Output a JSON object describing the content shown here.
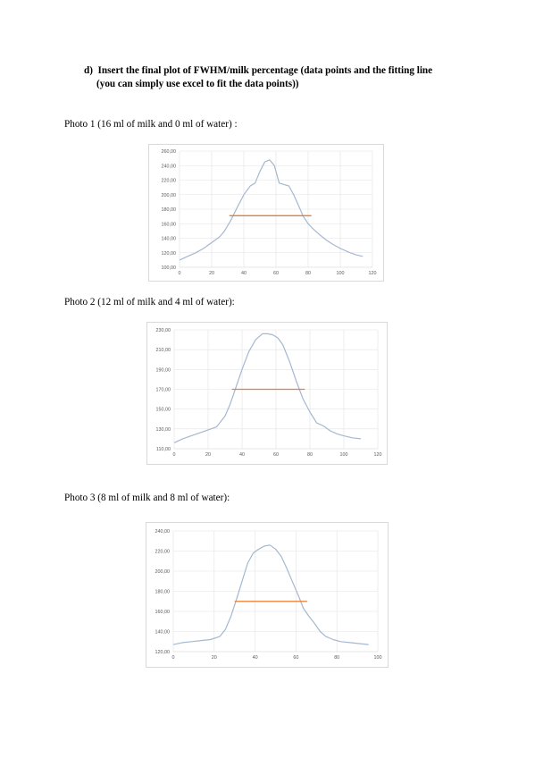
{
  "heading": {
    "marker": "d)",
    "line1": "Insert the final plot of FWHM/milk percentage (data points and the fitting line",
    "line2": "(you can simply use excel to fit the data points))"
  },
  "photos": [
    {
      "caption": "Photo 1 (16 ml of milk and 0 ml of water) :"
    },
    {
      "caption": "Photo 2 (12 ml of milk and 4 ml of water):"
    },
    {
      "caption": "Photo 3 (8 ml of milk and 8 ml of water):"
    }
  ],
  "chart_data": [
    {
      "type": "line",
      "xlim": [
        0,
        120
      ],
      "ylim": [
        100,
        260
      ],
      "x_ticks": [
        "0",
        "20",
        "40",
        "60",
        "80",
        "100",
        "120"
      ],
      "y_ticks": [
        "100,00",
        "120,00",
        "140,00",
        "160,00",
        "180,00",
        "200,00",
        "220,00",
        "240,00",
        "260,00"
      ],
      "grid": true,
      "colors": {
        "profile": "#a5b8d0",
        "fwhm": "#ed7d31"
      },
      "profile": {
        "x": [
          0,
          5,
          10,
          15,
          20,
          25,
          28,
          32,
          36,
          40,
          44,
          47,
          50,
          53,
          56,
          59,
          62,
          65,
          68,
          71,
          74,
          77,
          80,
          83,
          87,
          91,
          95,
          100,
          105,
          110,
          114
        ],
        "y": [
          110,
          115,
          120,
          126,
          134,
          142,
          150,
          165,
          183,
          200,
          212,
          216,
          232,
          245,
          248,
          240,
          216,
          214,
          212,
          200,
          185,
          170,
          160,
          153,
          145,
          138,
          132,
          126,
          121,
          117,
          115
        ]
      },
      "fwhm_line": {
        "x": [
          31,
          82
        ],
        "y": [
          171,
          171
        ]
      }
    },
    {
      "type": "line",
      "xlim": [
        0,
        120
      ],
      "ylim": [
        110,
        230
      ],
      "x_ticks": [
        "0",
        "20",
        "40",
        "60",
        "80",
        "100",
        "120"
      ],
      "y_ticks": [
        "110,00",
        "130,00",
        "150,00",
        "170,00",
        "190,00",
        "210,00",
        "230,00"
      ],
      "grid": true,
      "colors": {
        "profile": "#a5b8d0",
        "fwhm": "#ed7d31"
      },
      "profile": {
        "x": [
          0,
          5,
          10,
          15,
          20,
          25,
          30,
          33,
          36,
          40,
          44,
          48,
          52,
          55,
          58,
          61,
          64,
          68,
          72,
          76,
          80,
          84,
          88,
          92,
          96,
          100,
          105,
          110
        ],
        "y": [
          116,
          120,
          123,
          126,
          129,
          132,
          143,
          155,
          170,
          190,
          208,
          220,
          226,
          226,
          225,
          222,
          215,
          198,
          178,
          160,
          147,
          136,
          133,
          128,
          125,
          123,
          121,
          120
        ]
      },
      "fwhm_line": {
        "x": [
          34,
          77
        ],
        "y": [
          170,
          170
        ]
      }
    },
    {
      "type": "line",
      "xlim": [
        0,
        110
      ],
      "ylim": [
        120,
        240
      ],
      "x_ticks": [
        "0",
        "20",
        "40",
        "60",
        "80",
        "100"
      ],
      "y_ticks": [
        "120,00",
        "140,00",
        "160,00",
        "180,00",
        "200,00",
        "220,00",
        "240,00"
      ],
      "grid": true,
      "colors": {
        "profile": "#a5b8d0",
        "fwhm": "#ed7d31"
      },
      "profile": {
        "x": [
          0,
          5,
          10,
          15,
          20,
          25,
          28,
          31,
          34,
          37,
          40,
          43,
          46,
          49,
          52,
          55,
          58,
          61,
          64,
          67,
          70,
          73,
          76,
          79,
          82,
          86,
          90,
          95,
          100,
          105
        ],
        "y": [
          127,
          129,
          130,
          131,
          132,
          135,
          142,
          155,
          172,
          190,
          208,
          218,
          222,
          225,
          226,
          222,
          215,
          203,
          190,
          177,
          163,
          155,
          148,
          140,
          135,
          132,
          130,
          129,
          128,
          127
        ]
      },
      "fwhm_line": {
        "x": [
          33,
          72
        ],
        "y": [
          170,
          170
        ]
      }
    }
  ]
}
